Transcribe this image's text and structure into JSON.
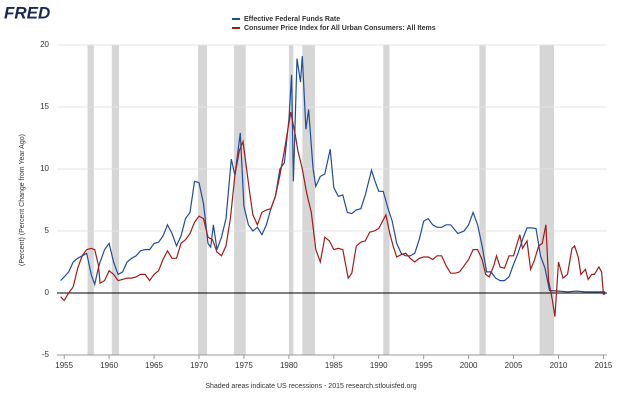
{
  "logo": "FRED",
  "chart_data": {
    "type": "line",
    "y_label": "(Percent) (Percent Change from Year Ago)",
    "footer": "Shaded areas indicate US recessions - 2015 research.stlouisfed.org",
    "xlim": [
      1954.2,
      2015.4
    ],
    "xticks": [
      1955,
      1960,
      1965,
      1970,
      1975,
      1980,
      1985,
      1990,
      1995,
      2000,
      2005,
      2010,
      2015
    ],
    "ylim": [
      -5,
      20
    ],
    "yticks": [
      20,
      15,
      10,
      5,
      0,
      -5
    ],
    "grid": true,
    "recessions": [
      [
        1957.6,
        1958.3
      ],
      [
        1960.3,
        1961.1
      ],
      [
        1969.9,
        1970.9
      ],
      [
        1973.9,
        1975.2
      ],
      [
        1980.0,
        1980.5
      ],
      [
        1981.5,
        1982.9
      ],
      [
        1990.5,
        1991.2
      ],
      [
        2001.2,
        2001.9
      ],
      [
        2007.9,
        2009.5
      ]
    ],
    "series": [
      {
        "name": "Effective Federal Funds Rate",
        "color": "#1f4e9a",
        "x": [
          1954.6,
          1955,
          1955.5,
          1956,
          1956.5,
          1957,
          1957.5,
          1958,
          1958.4,
          1958.8,
          1959,
          1959.5,
          1960,
          1960.5,
          1961,
          1961.5,
          1962,
          1962.5,
          1963,
          1963.5,
          1964,
          1964.5,
          1965,
          1965.5,
          1966,
          1966.5,
          1967,
          1967.5,
          1968,
          1968.5,
          1969,
          1969.5,
          1970,
          1970.5,
          1971,
          1971.3,
          1971.6,
          1972,
          1972.5,
          1973,
          1973.6,
          1974,
          1974.6,
          1975,
          1975.5,
          1976,
          1976.5,
          1977,
          1977.5,
          1978,
          1978.5,
          1979,
          1979.5,
          1980,
          1980.3,
          1980.5,
          1980.9,
          1981.3,
          1981.5,
          1981.9,
          1982.2,
          1982.7,
          1983,
          1983.5,
          1984,
          1984.6,
          1985,
          1985.5,
          1986,
          1986.5,
          1987,
          1987.5,
          1988,
          1988.5,
          1989.2,
          1989.6,
          1990,
          1990.5,
          1991,
          1991.5,
          1992,
          1992.5,
          1993,
          1993.5,
          1994,
          1994.5,
          1995,
          1995.5,
          1996,
          1996.5,
          1997,
          1997.5,
          1998,
          1998.8,
          1999.5,
          2000,
          2000.5,
          2001,
          2001.5,
          2002,
          2002.5,
          2003,
          2003.5,
          2004,
          2004.5,
          2005,
          2005.5,
          2006,
          2006.5,
          2007,
          2007.5,
          2008,
          2008.5,
          2009,
          2010,
          2011,
          2012,
          2013,
          2014,
          2015,
          2015.2
        ],
        "values": [
          1.0,
          1.3,
          1.7,
          2.5,
          2.8,
          3.0,
          3.2,
          1.5,
          0.7,
          2.0,
          2.5,
          3.5,
          4.0,
          2.5,
          1.5,
          1.7,
          2.5,
          2.8,
          3.0,
          3.4,
          3.5,
          3.5,
          4.0,
          4.1,
          4.6,
          5.5,
          4.8,
          3.8,
          4.6,
          6.0,
          6.5,
          9.0,
          8.9,
          7.2,
          4.0,
          3.7,
          5.5,
          3.5,
          4.5,
          6.0,
          10.8,
          9.5,
          12.9,
          7.0,
          5.5,
          5.0,
          5.3,
          4.7,
          5.5,
          6.8,
          7.8,
          10.0,
          10.5,
          14.0,
          17.6,
          9.0,
          18.9,
          17.0,
          19.1,
          13.2,
          14.8,
          10.0,
          8.6,
          9.4,
          9.6,
          11.6,
          8.5,
          7.8,
          7.9,
          6.5,
          6.4,
          6.7,
          6.8,
          7.9,
          9.9,
          9.0,
          8.2,
          8.2,
          6.9,
          5.8,
          4.0,
          3.2,
          3.0,
          3.0,
          3.2,
          4.3,
          5.8,
          6.0,
          5.5,
          5.3,
          5.3,
          5.5,
          5.5,
          4.8,
          5.0,
          5.5,
          6.5,
          5.5,
          3.8,
          1.7,
          1.7,
          1.2,
          1.0,
          1.0,
          1.3,
          2.3,
          3.2,
          4.3,
          5.25,
          5.25,
          5.2,
          3.0,
          2.0,
          0.2,
          0.15,
          0.1,
          0.15,
          0.1,
          0.1,
          0.1,
          0.1
        ]
      },
      {
        "name": "Consumer Price Index for All Urban Consumers: All Items",
        "color": "#a01c1c",
        "x": [
          1954.6,
          1955,
          1955.5,
          1956,
          1956.5,
          1957,
          1957.5,
          1958,
          1958.4,
          1958.8,
          1959,
          1959.5,
          1960,
          1960.5,
          1961,
          1961.5,
          1962,
          1962.5,
          1963,
          1963.5,
          1964,
          1964.5,
          1965,
          1965.5,
          1966,
          1966.5,
          1967,
          1967.5,
          1968,
          1968.5,
          1969,
          1969.5,
          1970,
          1970.5,
          1971,
          1971.5,
          1972,
          1972.5,
          1973,
          1973.5,
          1974,
          1974.5,
          1974.9,
          1975.3,
          1975.7,
          1976,
          1976.5,
          1977,
          1977.5,
          1978,
          1978.5,
          1979,
          1979.5,
          1980.2,
          1980.7,
          1981,
          1981.5,
          1982,
          1982.5,
          1983,
          1983.5,
          1984,
          1984.5,
          1985,
          1985.5,
          1986,
          1986.6,
          1987,
          1987.5,
          1988,
          1988.5,
          1989,
          1989.5,
          1990,
          1990.8,
          1991.2,
          1991.6,
          1992,
          1992.5,
          1993,
          1993.5,
          1994,
          1994.5,
          1995,
          1995.5,
          1996,
          1996.5,
          1997,
          1997.5,
          1998,
          1998.5,
          1999,
          1999.5,
          2000,
          2000.5,
          2001,
          2001.5,
          2001.9,
          2002.3,
          2002.8,
          2003.1,
          2003.5,
          2004,
          2004.5,
          2005,
          2005.7,
          2006,
          2006.5,
          2006.9,
          2007.3,
          2007.8,
          2008.2,
          2008.6,
          2008.9,
          2009.3,
          2009.6,
          2010,
          2010.5,
          2011,
          2011.5,
          2011.8,
          2012.2,
          2012.5,
          2013,
          2013.3,
          2013.7,
          2014,
          2014.5,
          2014.8,
          2015,
          2015.2
        ],
        "values": [
          -0.3,
          -0.6,
          0.0,
          0.5,
          2.0,
          3.0,
          3.5,
          3.6,
          3.5,
          2.3,
          0.8,
          1.0,
          1.8,
          1.5,
          1.0,
          1.1,
          1.2,
          1.2,
          1.3,
          1.5,
          1.5,
          1.0,
          1.5,
          1.8,
          2.7,
          3.4,
          2.8,
          2.8,
          4.0,
          4.3,
          4.8,
          5.7,
          6.2,
          6.0,
          4.5,
          4.3,
          3.3,
          3.0,
          3.8,
          6.0,
          9.5,
          11.5,
          12.2,
          10.0,
          7.8,
          6.3,
          5.5,
          6.5,
          6.7,
          6.8,
          7.8,
          9.5,
          11.5,
          14.6,
          12.8,
          11.5,
          10.0,
          8.0,
          6.5,
          3.5,
          2.5,
          4.5,
          4.2,
          3.5,
          3.6,
          3.5,
          1.2,
          1.6,
          3.8,
          4.1,
          4.2,
          4.9,
          5.0,
          5.2,
          6.3,
          4.9,
          3.8,
          2.9,
          3.1,
          3.2,
          2.8,
          2.5,
          2.8,
          2.9,
          2.9,
          2.7,
          3.0,
          3.0,
          2.2,
          1.6,
          1.6,
          1.7,
          2.2,
          2.7,
          3.5,
          3.5,
          2.7,
          1.5,
          1.3,
          2.2,
          3.0,
          2.1,
          2.0,
          3.0,
          3.0,
          4.7,
          3.6,
          4.2,
          1.9,
          2.6,
          3.8,
          4.0,
          5.5,
          1.0,
          -0.5,
          -1.9,
          2.5,
          1.2,
          1.5,
          3.6,
          3.8,
          2.9,
          1.5,
          1.9,
          1.1,
          1.5,
          1.5,
          2.1,
          1.7,
          -0.1,
          -0.1
        ]
      }
    ]
  }
}
